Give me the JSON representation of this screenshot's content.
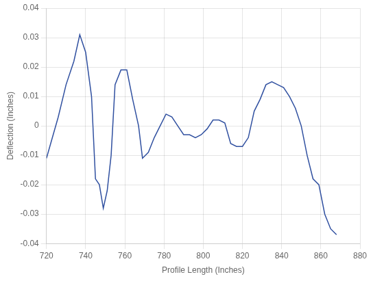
{
  "chart_data": {
    "type": "line",
    "x": [
      720,
      726,
      730,
      734,
      737,
      740,
      743,
      745,
      747,
      749,
      751,
      753,
      755,
      758,
      761,
      764,
      767,
      769,
      772,
      775,
      778,
      781,
      784,
      787,
      790,
      793,
      796,
      799,
      802,
      805,
      808,
      811,
      814,
      817,
      820,
      823,
      826,
      829,
      832,
      835,
      838,
      841,
      844,
      847,
      850,
      853,
      856,
      859,
      862,
      865,
      868
    ],
    "values": [
      -0.011,
      0.003,
      0.014,
      0.022,
      0.031,
      0.025,
      0.01,
      -0.018,
      -0.02,
      -0.028,
      -0.022,
      -0.01,
      0.014,
      0.019,
      0.019,
      0.009,
      0.0,
      -0.011,
      -0.009,
      -0.004,
      0.0,
      0.004,
      0.003,
      0.0,
      -0.003,
      -0.003,
      -0.004,
      -0.003,
      -0.001,
      0.002,
      0.002,
      0.001,
      -0.006,
      -0.007,
      -0.007,
      -0.004,
      0.005,
      0.009,
      0.014,
      0.015,
      0.014,
      0.013,
      0.01,
      0.006,
      0.0,
      -0.01,
      -0.018,
      -0.02,
      -0.03,
      -0.035,
      -0.037
    ],
    "color": "#3050a0",
    "xlabel": "Profile Length (Inches)",
    "ylabel": "Deflection (Inches)",
    "xlim": [
      720,
      880
    ],
    "ylim": [
      -0.04,
      0.04
    ],
    "xticks": [
      720,
      740,
      760,
      780,
      800,
      820,
      840,
      860,
      880
    ],
    "yticks": [
      -0.04,
      -0.03,
      -0.02,
      -0.01,
      0,
      0.01,
      0.02,
      0.03,
      0.04
    ],
    "grid": true
  }
}
